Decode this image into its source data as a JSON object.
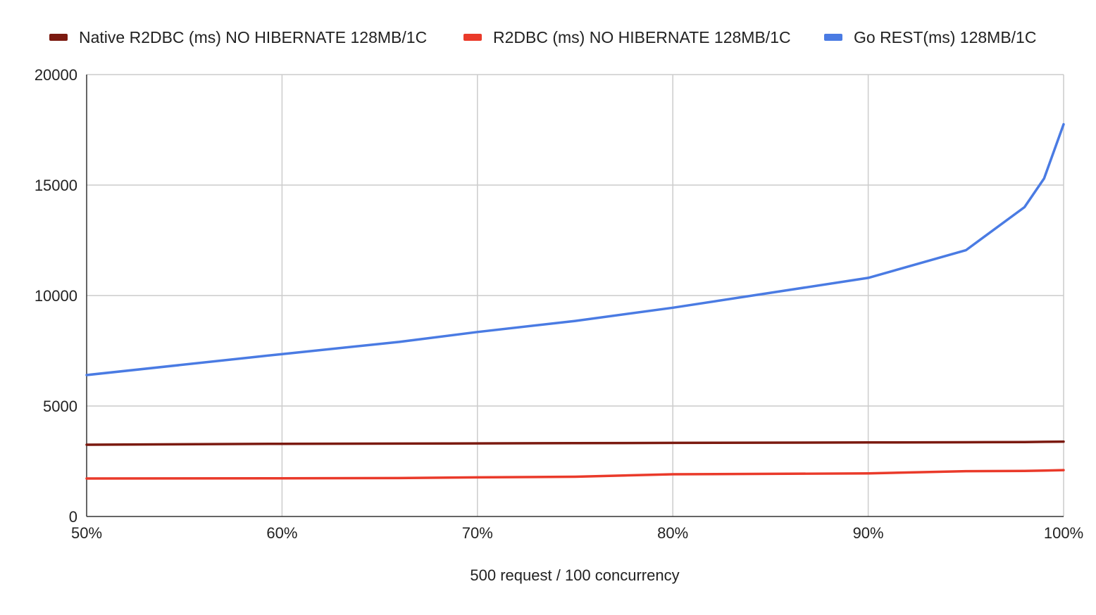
{
  "chart_data": {
    "type": "line",
    "title": "",
    "xlabel": "500 request / 100 concurrency",
    "ylabel": "",
    "x": [
      50,
      60,
      66,
      70,
      75,
      80,
      90,
      95,
      98,
      99,
      100
    ],
    "x_tick_values": [
      50,
      60,
      70,
      80,
      90,
      100
    ],
    "x_tick_labels": [
      "50%",
      "60%",
      "70%",
      "80%",
      "90%",
      "100%"
    ],
    "xlim": [
      50,
      100
    ],
    "ylim": [
      0,
      20000
    ],
    "y_ticks": [
      0,
      5000,
      10000,
      15000,
      20000
    ],
    "y_tick_labels": [
      "0",
      "5000",
      "10000",
      "15000",
      "20000"
    ],
    "grid": true,
    "legend_position": "top",
    "series": [
      {
        "name": "Native R2DBC (ms) NO HIBERNATE 128MB/1C",
        "color": "#7b1a10",
        "values": [
          3250,
          3290,
          3300,
          3310,
          3320,
          3330,
          3350,
          3360,
          3370,
          3380,
          3390
        ]
      },
      {
        "name": "R2DBC (ms) NO HIBERNATE 128MB/1C",
        "color": "#ea3a2a",
        "values": [
          1720,
          1730,
          1740,
          1770,
          1800,
          1910,
          1950,
          2050,
          2060,
          2080,
          2100
        ]
      },
      {
        "name": "Go REST(ms) 128MB/1C",
        "color": "#4a7be3",
        "values": [
          6400,
          7350,
          7900,
          8350,
          8850,
          9450,
          10800,
          12050,
          14000,
          15300,
          17750
        ]
      }
    ]
  }
}
